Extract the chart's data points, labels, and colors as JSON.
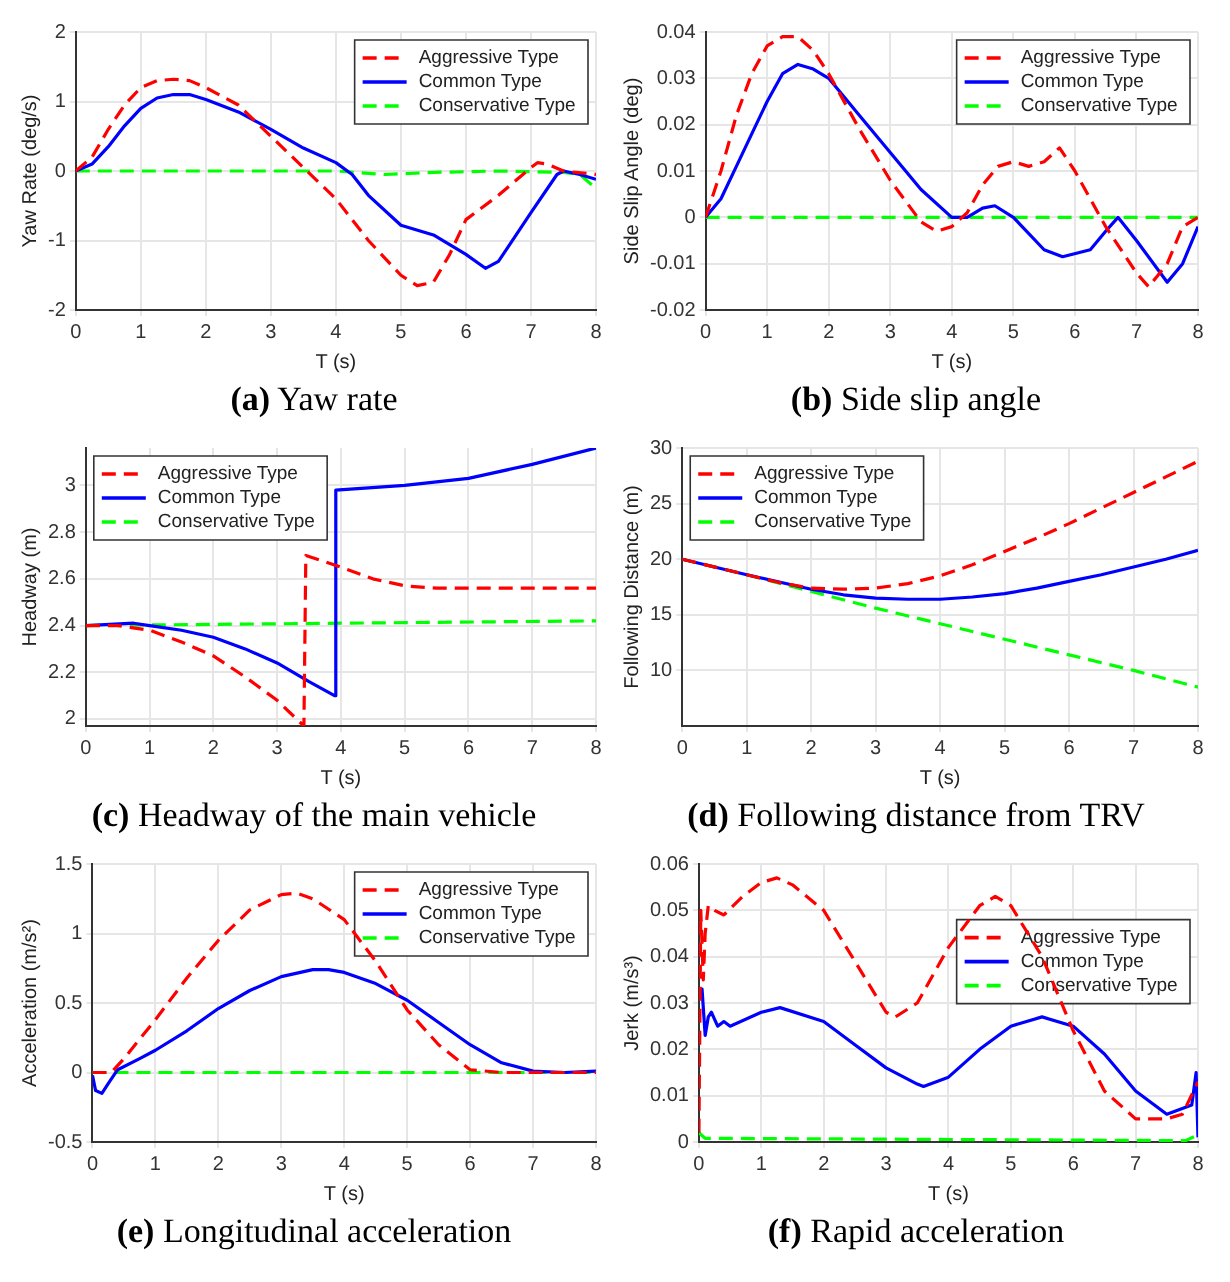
{
  "chart_data": [
    {
      "type": "line",
      "title": "(a) Yaw rate",
      "xlabel": "T (s)",
      "ylabel": "Yaw Rate (deg/s)",
      "xlim": [
        0,
        8
      ],
      "xticks": [
        0,
        1,
        2,
        3,
        4,
        5,
        6,
        7,
        8
      ],
      "ylim": [
        -2,
        2
      ],
      "yticks": [
        -2,
        -1,
        0,
        1,
        2
      ],
      "grid": true,
      "legend": "top right",
      "marker": "none",
      "series": [
        {
          "name": "Aggressive Type",
          "color": "#ff0000",
          "line_style": "dashed",
          "x": [
            0,
            0.25,
            0.5,
            0.75,
            1,
            1.25,
            1.5,
            1.75,
            2,
            2.5,
            3,
            3.5,
            4,
            4.5,
            5,
            5.25,
            5.5,
            5.75,
            6,
            6.5,
            7,
            7.1,
            7.25,
            7.5,
            8
          ],
          "values": [
            0,
            0.2,
            0.6,
            0.95,
            1.2,
            1.3,
            1.32,
            1.3,
            1.2,
            0.95,
            0.5,
            0.05,
            -0.4,
            -1.0,
            -1.5,
            -1.65,
            -1.6,
            -1.2,
            -0.7,
            -0.35,
            0.05,
            0.12,
            0.1,
            0,
            -0.05
          ]
        },
        {
          "name": "Common Type",
          "color": "#0000ff",
          "line_style": "solid",
          "x": [
            0,
            0.25,
            0.5,
            0.75,
            1,
            1.25,
            1.5,
            1.75,
            2,
            2.5,
            3,
            3.5,
            4,
            4.25,
            4.5,
            5,
            5.5,
            6,
            6.3,
            6.5,
            7,
            7.4,
            7.5,
            7.75,
            8
          ],
          "values": [
            0,
            0.1,
            0.35,
            0.65,
            0.9,
            1.05,
            1.1,
            1.1,
            1.03,
            0.85,
            0.6,
            0.33,
            0.12,
            -0.05,
            -0.35,
            -0.78,
            -0.92,
            -1.2,
            -1.4,
            -1.3,
            -0.6,
            -0.05,
            0,
            -0.05,
            -0.12
          ]
        },
        {
          "name": "Conservative Type",
          "color": "#00ff00",
          "line_style": "dashed",
          "x": [
            0,
            4,
            4.75,
            5.5,
            6.5,
            7.5,
            7.75,
            8
          ],
          "values": [
            0,
            0,
            -0.05,
            -0.02,
            0,
            -0.02,
            -0.05,
            -0.25
          ]
        }
      ]
    },
    {
      "type": "line",
      "title": "(b) Side slip angle",
      "xlabel": "T (s)",
      "ylabel": "Side Slip Angle (deg)",
      "xlim": [
        0,
        8
      ],
      "xticks": [
        0,
        1,
        2,
        3,
        4,
        5,
        6,
        7,
        8
      ],
      "ylim": [
        -0.02,
        0.04
      ],
      "yticks": [
        -0.02,
        -0.01,
        0,
        0.01,
        0.02,
        0.03,
        0.04
      ],
      "grid": true,
      "legend": "top right",
      "marker": "none",
      "series": [
        {
          "name": "Aggressive Type",
          "color": "#ff0000",
          "line_style": "dashed",
          "x": [
            0,
            0.25,
            0.5,
            0.75,
            1,
            1.25,
            1.5,
            1.75,
            2,
            2.5,
            3,
            3.5,
            3.75,
            4,
            4.25,
            4.5,
            4.75,
            5,
            5.25,
            5.5,
            5.75,
            6,
            6.25,
            6.5,
            7,
            7.2,
            7.5,
            7.75,
            8
          ],
          "values": [
            0,
            0.01,
            0.022,
            0.031,
            0.037,
            0.039,
            0.039,
            0.036,
            0.031,
            0.019,
            0.008,
            -0.001,
            -0.003,
            -0.002,
            0.001,
            0.007,
            0.011,
            0.012,
            0.011,
            0.012,
            0.015,
            0.01,
            0.004,
            -0.002,
            -0.012,
            -0.015,
            -0.01,
            -0.002,
            0
          ]
        },
        {
          "name": "Common Type",
          "color": "#0000ff",
          "line_style": "solid",
          "x": [
            0,
            0.25,
            0.5,
            0.75,
            1,
            1.25,
            1.5,
            1.75,
            2,
            2.5,
            3,
            3.5,
            4,
            4.25,
            4.5,
            4.7,
            5,
            5.5,
            5.8,
            6.25,
            6.5,
            6.7,
            7,
            7.5,
            7.75,
            8
          ],
          "values": [
            0,
            0.004,
            0.011,
            0.018,
            0.025,
            0.031,
            0.033,
            0.032,
            0.03,
            0.022,
            0.014,
            0.006,
            0,
            0,
            0.002,
            0.0025,
            0,
            -0.007,
            -0.0085,
            -0.007,
            -0.003,
            0,
            -0.005,
            -0.014,
            -0.01,
            -0.002
          ]
        },
        {
          "name": "Conservative Type",
          "color": "#00ff00",
          "line_style": "dashed",
          "x": [
            0,
            8
          ],
          "values": [
            0,
            0
          ]
        }
      ]
    },
    {
      "type": "line",
      "title": "(c) Headway of the main vehicle",
      "xlabel": "T (s)",
      "ylabel": "Headway (m)",
      "xlim": [
        0,
        8
      ],
      "xticks": [
        0,
        1,
        2,
        3,
        4,
        5,
        6,
        7,
        8
      ],
      "ylim": [
        1.97,
        3.16
      ],
      "yticks": [
        2,
        2.2,
        2.4,
        2.6,
        2.8,
        3
      ],
      "grid": true,
      "legend": "top left",
      "marker": "none",
      "series": [
        {
          "name": "Aggressive Type",
          "color": "#ff0000",
          "line_style": "dashed",
          "x": [
            0,
            0.5,
            1,
            1.5,
            2,
            2.5,
            3,
            3.42,
            3.45,
            4,
            4.5,
            5,
            5.5,
            6,
            8
          ],
          "values": [
            2.4,
            2.4,
            2.38,
            2.33,
            2.27,
            2.18,
            2.08,
            1.97,
            2.7,
            2.65,
            2.6,
            2.57,
            2.56,
            2.56,
            2.56
          ]
        },
        {
          "name": "Common Type",
          "color": "#0000ff",
          "line_style": "solid",
          "x": [
            0,
            0.75,
            1,
            1.5,
            2,
            2.5,
            3,
            3.5,
            3.9,
            3.92,
            5,
            6,
            7,
            8
          ],
          "values": [
            2.4,
            2.41,
            2.4,
            2.38,
            2.35,
            2.3,
            2.24,
            2.16,
            2.1,
            2.98,
            3.0,
            3.03,
            3.09,
            3.16
          ]
        },
        {
          "name": "Conservative Type",
          "color": "#00ff00",
          "line_style": "dashed",
          "x": [
            0,
            8
          ],
          "values": [
            2.4,
            2.42
          ]
        }
      ]
    },
    {
      "type": "line",
      "title": "(d) Following distance from TRV",
      "xlabel": "T (s)",
      "ylabel": "Following Distance (m)",
      "xlim": [
        0,
        8
      ],
      "xticks": [
        0,
        1,
        2,
        3,
        4,
        5,
        6,
        7,
        8
      ],
      "ylim": [
        5,
        30
      ],
      "yticks": [
        10,
        15,
        20,
        25,
        30
      ],
      "grid": true,
      "legend": "top left",
      "marker": "none",
      "series": [
        {
          "name": "Aggressive Type",
          "color": "#ff0000",
          "line_style": "dashed",
          "x": [
            0,
            1,
            1.5,
            2,
            2.5,
            3,
            3.5,
            4,
            4.5,
            5,
            5.5,
            6,
            6.5,
            7,
            7.5,
            8
          ],
          "values": [
            20,
            18.6,
            17.9,
            17.4,
            17.3,
            17.4,
            17.8,
            18.5,
            19.5,
            20.7,
            21.9,
            23.2,
            24.6,
            26,
            27.4,
            28.8
          ]
        },
        {
          "name": "Common Type",
          "color": "#0000ff",
          "line_style": "solid",
          "x": [
            0,
            1,
            2,
            2.5,
            3,
            3.5,
            4,
            4.5,
            5,
            5.5,
            6,
            6.5,
            7,
            7.5,
            8
          ],
          "values": [
            20,
            18.6,
            17.3,
            16.8,
            16.5,
            16.4,
            16.4,
            16.6,
            16.9,
            17.4,
            18,
            18.6,
            19.3,
            20,
            20.8
          ]
        },
        {
          "name": "Conservative Type",
          "color": "#00ff00",
          "line_style": "dashed",
          "x": [
            0,
            1,
            2,
            3,
            4,
            5,
            6,
            7,
            8
          ],
          "values": [
            20,
            18.6,
            17.1,
            15.6,
            14.2,
            12.8,
            11.4,
            10,
            8.5
          ]
        }
      ]
    },
    {
      "type": "line",
      "title": "(e) Longitudinal acceleration",
      "xlabel": "T (s)",
      "ylabel": "Acceleration (m/s²)",
      "xlim": [
        0,
        8
      ],
      "xticks": [
        0,
        1,
        2,
        3,
        4,
        5,
        6,
        7,
        8
      ],
      "ylim": [
        -0.5,
        1.5
      ],
      "yticks": [
        -0.5,
        0,
        0.5,
        1,
        1.5
      ],
      "grid": true,
      "legend": "top right",
      "marker": "none",
      "series": [
        {
          "name": "Aggressive Type",
          "color": "#ff0000",
          "line_style": "dashed",
          "x": [
            0,
            0.3,
            0.5,
            1,
            1.5,
            2,
            2.5,
            3,
            3.25,
            3.5,
            4,
            4.5,
            5,
            5.5,
            6,
            6.5,
            8
          ],
          "values": [
            0,
            0,
            0.1,
            0.38,
            0.68,
            0.95,
            1.17,
            1.28,
            1.29,
            1.25,
            1.1,
            0.8,
            0.45,
            0.2,
            0.02,
            0,
            0
          ]
        },
        {
          "name": "Common Type",
          "color": "#0000ff",
          "line_style": "solid",
          "x": [
            0,
            0.05,
            0.15,
            0.25,
            0.4,
            0.75,
            1,
            1.5,
            2,
            2.5,
            3,
            3.5,
            3.75,
            4,
            4.5,
            5,
            5.5,
            6,
            6.5,
            7,
            7.5,
            8
          ],
          "values": [
            -0.02,
            -0.13,
            -0.15,
            -0.08,
            0.02,
            0.1,
            0.16,
            0.3,
            0.46,
            0.59,
            0.69,
            0.74,
            0.74,
            0.72,
            0.64,
            0.52,
            0.36,
            0.2,
            0.07,
            0.01,
            0,
            0.01
          ]
        },
        {
          "name": "Conservative Type",
          "color": "#00ff00",
          "line_style": "dashed",
          "x": [
            0,
            8
          ],
          "values": [
            0,
            0
          ]
        }
      ]
    },
    {
      "type": "line",
      "title": "(f) Rapid acceleration",
      "xlabel": "T (s)",
      "ylabel": "Jerk (m/s³)",
      "xlim": [
        0,
        8
      ],
      "xticks": [
        0,
        1,
        2,
        3,
        4,
        5,
        6,
        7,
        8
      ],
      "ylim": [
        0,
        0.06
      ],
      "yticks": [
        0,
        0.01,
        0.02,
        0.03,
        0.04,
        0.05,
        0.06
      ],
      "grid": true,
      "legend": "right",
      "marker": "none",
      "series": [
        {
          "name": "Aggressive Type",
          "color": "#ff0000",
          "line_style": "dashed",
          "x": [
            0,
            0.03,
            0.07,
            0.1,
            0.15,
            0.25,
            0.4,
            0.7,
            1,
            1.25,
            1.5,
            2,
            2.5,
            3,
            3.15,
            3.5,
            4,
            4.5,
            4.75,
            5,
            5.5,
            6,
            6.5,
            7,
            7.5,
            7.75,
            8
          ],
          "values": [
            0.002,
            0.05,
            0.035,
            0.045,
            0.051,
            0.05,
            0.049,
            0.053,
            0.056,
            0.057,
            0.0555,
            0.05,
            0.039,
            0.028,
            0.027,
            0.03,
            0.042,
            0.051,
            0.053,
            0.051,
            0.04,
            0.024,
            0.011,
            0.005,
            0.005,
            0.006,
            0.013
          ]
        },
        {
          "name": "Common Type",
          "color": "#0000ff",
          "line_style": "solid",
          "x": [
            0,
            0.05,
            0.1,
            0.15,
            0.2,
            0.3,
            0.4,
            0.5,
            1,
            1.3,
            2,
            2.5,
            3,
            3.5,
            3.6,
            4,
            4.5,
            5,
            5.5,
            6,
            6.5,
            7,
            7.5,
            7.9,
            7.97,
            8
          ],
          "values": [
            0.033,
            0.033,
            0.023,
            0.027,
            0.028,
            0.025,
            0.026,
            0.025,
            0.028,
            0.029,
            0.026,
            0.021,
            0.016,
            0.0125,
            0.012,
            0.014,
            0.02,
            0.025,
            0.027,
            0.025,
            0.019,
            0.011,
            0.006,
            0.008,
            0.015,
            0.001
          ]
        },
        {
          "name": "Conservative Type",
          "color": "#00ff00",
          "line_style": "dashed",
          "x": [
            0,
            0.1,
            7.8,
            8
          ],
          "values": [
            0.002,
            0.0008,
            0.0003,
            0.0015
          ]
        }
      ]
    }
  ]
}
